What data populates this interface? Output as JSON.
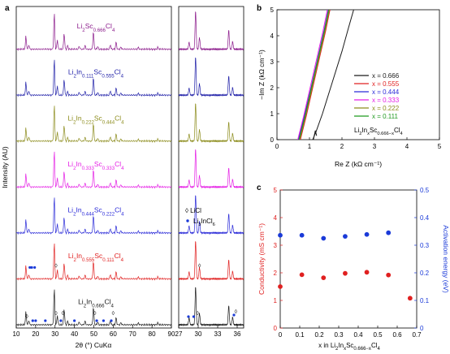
{
  "panel_labels": {
    "a": "a",
    "b": "b",
    "c": "c"
  },
  "colors": {
    "purple": "#8b1a8b",
    "navy": "#1f1fa8",
    "olive": "#8c8c1c",
    "magenta": "#e51ee5",
    "blue": "#2a2ad8",
    "red": "#e02020",
    "black": "#1a1a1a",
    "green": "#1f9a1f",
    "blue_marker": "#1a3ad8"
  },
  "chart_data": [
    {
      "id": "a",
      "type": "line",
      "ylabel": "Intensity (AU)",
      "xlabel_left": "2θ (°) CuKα",
      "x_main": [
        10,
        90
      ],
      "x_inset": [
        27,
        37
      ],
      "ticks_main": [
        "10",
        "20",
        "30",
        "40",
        "50",
        "60",
        "70",
        "80",
        "90"
      ],
      "ticks_inset": [
        "27",
        "30",
        "33",
        "36"
      ],
      "series": [
        {
          "name_parts": [
            "Li",
            "2",
            "Sc",
            "0.666",
            "Cl",
            "4"
          ],
          "color": "#8b1a8b"
        },
        {
          "name_parts": [
            "Li",
            "2",
            "In",
            "0.111",
            "Sc",
            "0.555",
            "Cl",
            "4"
          ],
          "color": "#1f1fa8"
        },
        {
          "name_parts": [
            "Li",
            "2",
            "In",
            "0.222",
            "Sc",
            "0.444",
            "Cl",
            "4"
          ],
          "color": "#8c8c1c"
        },
        {
          "name_parts": [
            "Li",
            "2",
            "In",
            "0.333",
            "Sc",
            "0.333",
            "Cl",
            "4"
          ],
          "color": "#e51ee5"
        },
        {
          "name_parts": [
            "Li",
            "2",
            "In",
            "0.444",
            "Sc",
            "0.222",
            "Cl",
            "4"
          ],
          "color": "#2a2ad8"
        },
        {
          "name_parts": [
            "Li",
            "2",
            "In",
            "0.555",
            "Sc",
            "0.111",
            "Cl",
            "4"
          ],
          "color": "#e02020"
        },
        {
          "name_parts": [
            "Li",
            "2",
            "In",
            "0.666",
            "Cl",
            "4"
          ],
          "color": "#1a1a1a"
        }
      ],
      "legend": [
        {
          "symbol": "◊",
          "label": "LiCl"
        },
        {
          "symbol": "•",
          "label_parts": [
            "Li",
            "3",
            "InCl",
            "6"
          ]
        }
      ]
    },
    {
      "id": "b",
      "type": "line",
      "xlabel": "Re Z (kΩ cm⁻¹)",
      "ylabel": "−Im Z (kΩ cm⁻¹)",
      "xlim": [
        0,
        5
      ],
      "ylim": [
        0,
        5
      ],
      "xticks": [
        "0",
        "1",
        "2",
        "3",
        "4",
        "5"
      ],
      "yticks": [
        "0",
        "1",
        "2",
        "3",
        "4",
        "5"
      ],
      "series": [
        {
          "name": "x = 0.666",
          "color": "#1a1a1a",
          "points": [
            [
              1.1,
              0.0
            ],
            [
              1.2,
              0.3
            ],
            [
              1.4,
              1.0
            ],
            [
              1.7,
              2.2
            ],
            [
              2.0,
              3.4
            ],
            [
              2.2,
              4.3
            ],
            [
              2.36,
              5.0
            ]
          ]
        },
        {
          "name": "x = 0.555",
          "color": "#e02020",
          "points": [
            [
              0.72,
              0.0
            ],
            [
              0.9,
              0.9
            ],
            [
              1.1,
              2.0
            ],
            [
              1.3,
              3.1
            ],
            [
              1.5,
              4.2
            ],
            [
              1.63,
              5.0
            ]
          ]
        },
        {
          "name": "x = 0.444",
          "color": "#2a2ad8",
          "points": [
            [
              0.66,
              0.0
            ],
            [
              0.84,
              0.9
            ],
            [
              1.05,
              2.0
            ],
            [
              1.25,
              3.1
            ],
            [
              1.45,
              4.2
            ],
            [
              1.58,
              5.0
            ]
          ]
        },
        {
          "name": "x = 0.333",
          "color": "#e51ee5",
          "points": [
            [
              0.64,
              0.0
            ],
            [
              0.82,
              0.9
            ],
            [
              1.02,
              2.0
            ],
            [
              1.22,
              3.1
            ],
            [
              1.42,
              4.2
            ],
            [
              1.55,
              5.0
            ]
          ]
        },
        {
          "name": "x = 0.222",
          "color": "#8c8c1c",
          "points": [
            [
              0.7,
              0.0
            ],
            [
              0.88,
              0.9
            ],
            [
              1.08,
              2.0
            ],
            [
              1.28,
              3.1
            ],
            [
              1.48,
              4.2
            ],
            [
              1.61,
              5.0
            ]
          ]
        },
        {
          "name": "x = 0.111",
          "color": "#1f9a1f",
          "points": [
            [
              0.68,
              0.0
            ],
            [
              0.86,
              0.9
            ],
            [
              1.06,
              2.0
            ],
            [
              1.26,
              3.1
            ],
            [
              1.46,
              4.2
            ],
            [
              1.59,
              5.0
            ]
          ]
        }
      ],
      "legend_title_parts": [
        "Li",
        "2",
        "In",
        "x",
        "Sc",
        "0.666−x",
        "Cl",
        "4"
      ]
    },
    {
      "id": "c",
      "type": "scatter",
      "xlabel_parts": [
        "x in Li",
        "2",
        "In",
        "x",
        "Sc",
        "0.666−x",
        "Cl",
        "4"
      ],
      "ylabel_left": "Conductivity (mS cm⁻¹)",
      "ylabel_right": "Activation energy (eV)",
      "xlim": [
        0,
        0.7
      ],
      "ylim_left": [
        0,
        5
      ],
      "ylim_right": [
        0,
        0.5
      ],
      "xticks": [
        "0",
        "0.1",
        "0.2",
        "0.3",
        "0.4",
        "0.5",
        "0.6",
        "0.7"
      ],
      "yticks_left": [
        "0",
        "1",
        "2",
        "3",
        "4",
        "5"
      ],
      "yticks_right": [
        "0",
        "0.1",
        "0.2",
        "0.3",
        "0.4",
        "0.5"
      ],
      "conductivity": {
        "color": "#e02020",
        "x": [
          0,
          0.111,
          0.222,
          0.333,
          0.444,
          0.555,
          0.666
        ],
        "y": [
          1.5,
          1.93,
          1.82,
          1.98,
          2.02,
          1.92,
          1.08
        ]
      },
      "activation_energy": {
        "color": "#1a3ad8",
        "x": [
          0,
          0.111,
          0.222,
          0.333,
          0.444,
          0.555
        ],
        "y": [
          0.336,
          0.336,
          0.325,
          0.332,
          0.339,
          0.345
        ]
      }
    }
  ]
}
